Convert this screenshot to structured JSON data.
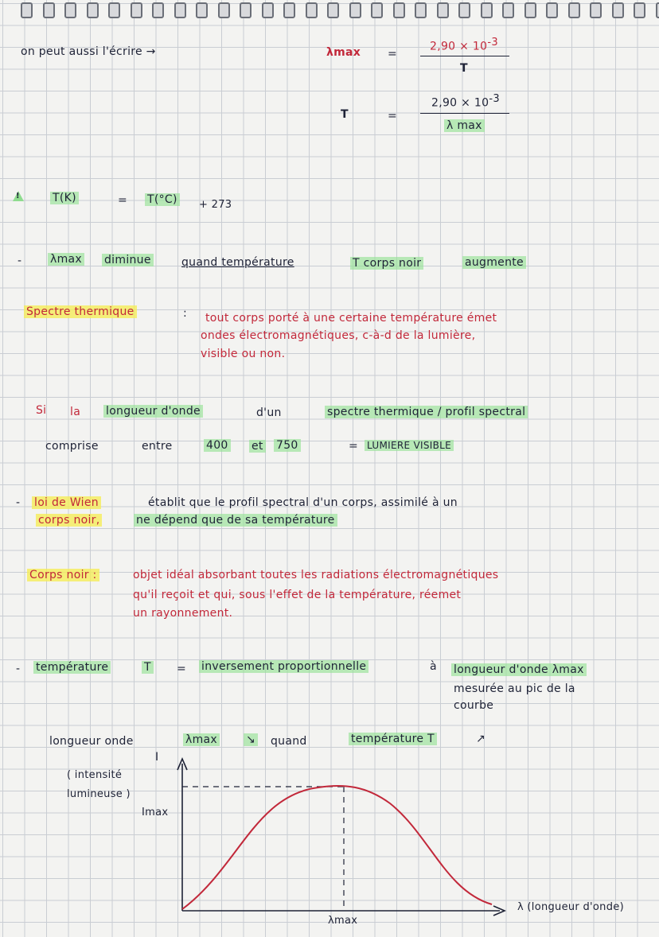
{
  "line1": {
    "prefix": "on peut aussi l'écrire →",
    "lambda_max": "λmax",
    "equals": "=",
    "numerator": "2,90 × 10",
    "exponent": "-3",
    "denominator": "T"
  },
  "line2": {
    "t": "T",
    "equals": "=",
    "numerator": "2,90 × 10",
    "exponent": "-3",
    "denominator": "λ max"
  },
  "kelvin": {
    "warning_glyph": "!",
    "left": "T(K)",
    "equals": "=",
    "right": "T(°C)",
    "plus": "+ 273"
  },
  "bullet1": {
    "dash": "-",
    "lambda_max": "λmax",
    "verb": "diminue",
    "middle": "quand température",
    "t_body": "T corps noir",
    "end": "augmente"
  },
  "spectre": {
    "term": "Spectre thermique",
    "colon": ":",
    "line1": "tout corps porté à une certaine température émet",
    "line2": "ondes électromagnétiques, c-à-d de la lumière,",
    "line3": "visible ou non."
  },
  "longueur": {
    "si": "Si",
    "la": "la",
    "phrase": "longueur d'onde",
    "mid": "d'un",
    "end": "spectre thermique / profil spectral"
  },
  "comprise": {
    "w1": "comprise",
    "w2": "entre",
    "v1": "400",
    "et": "et",
    "v2": "750",
    "equals": "=",
    "result": "LUMIERE VISIBLE"
  },
  "wien": {
    "dash": "-",
    "law": "loi de Wien",
    "line1_rest": "établit que le profil spectral d'un corps, assimilé à un",
    "line2_start": "corps noir,",
    "line2_rest": "ne dépend que de sa température"
  },
  "corps_noir": {
    "term": "Corps noir :",
    "line1": "objet idéal absorbant toutes les radiations électromagnétiques",
    "line2": "qu'il reçoit et qui, sous l'effet de la température, réemet",
    "line3": "un rayonnement."
  },
  "temperature": {
    "dash": "-",
    "term": "température",
    "t": "T",
    "equals": "=",
    "middle": "inversement proportionnelle",
    "a": "à",
    "end": "longueur d'onde λmax",
    "line2": "mesurée au pic de la",
    "line3": "courbe"
  },
  "relation": {
    "term": "longueur onde",
    "lambda_max": "λmax",
    "down_arrow": "↘",
    "quand": "quand",
    "temp": "température T",
    "up_arrow": "↗"
  },
  "graph": {
    "y_axis_label": "I",
    "y_desc_line1": "( intensité",
    "y_desc_line2": "lumineuse )",
    "i_max": "Imax",
    "x_axis_label": "λ (longueur d'onde)",
    "peak_label": "λmax",
    "curve_color": "#c2283a"
  }
}
